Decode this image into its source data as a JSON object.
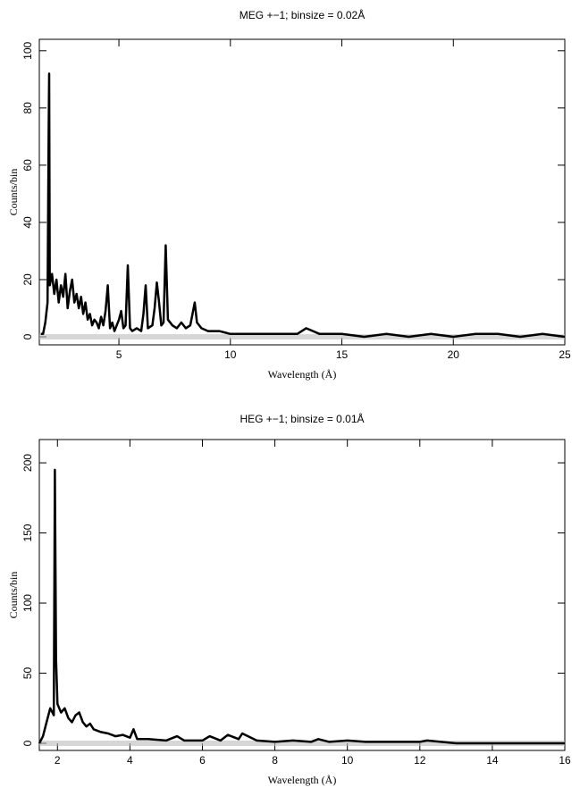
{
  "chart_data": [
    {
      "type": "line",
      "title": "MEG +−1; binsize = 0.02Å",
      "xlabel": "Wavelength (Å)",
      "ylabel": "Counts/bin",
      "color": "#000000",
      "x": [
        1.5,
        1.6,
        1.7,
        1.8,
        1.85,
        1.87,
        1.9,
        2.0,
        2.1,
        2.2,
        2.3,
        2.4,
        2.5,
        2.6,
        2.7,
        2.8,
        2.9,
        3.0,
        3.1,
        3.2,
        3.3,
        3.4,
        3.5,
        3.6,
        3.7,
        3.8,
        3.9,
        4.0,
        4.1,
        4.2,
        4.3,
        4.4,
        4.5,
        4.6,
        4.7,
        4.8,
        4.9,
        5.0,
        5.1,
        5.2,
        5.3,
        5.4,
        5.5,
        5.6,
        5.8,
        6.0,
        6.1,
        6.2,
        6.3,
        6.5,
        6.6,
        6.7,
        6.8,
        6.9,
        7.0,
        7.1,
        7.2,
        7.4,
        7.6,
        7.8,
        8.0,
        8.2,
        8.4,
        8.5,
        8.7,
        9.0,
        9.5,
        10.0,
        10.5,
        11.0,
        11.5,
        12.0,
        13.0,
        13.4,
        14,
        15,
        16,
        17,
        18,
        19,
        20,
        21,
        22,
        23,
        24,
        25
      ],
      "values": [
        1,
        1,
        5,
        12,
        74,
        92,
        18,
        22,
        15,
        20,
        12,
        18,
        14,
        22,
        10,
        16,
        20,
        12,
        15,
        10,
        14,
        8,
        12,
        6,
        8,
        4,
        6,
        5,
        3,
        7,
        4,
        9,
        18,
        3,
        5,
        2,
        4,
        6,
        9,
        3,
        4,
        25,
        3,
        2,
        3,
        2,
        8,
        18,
        3,
        4,
        10,
        19,
        12,
        4,
        5,
        32,
        6,
        4,
        3,
        5,
        3,
        4,
        12,
        5,
        3,
        2,
        2,
        1,
        1,
        1,
        1,
        1,
        1,
        3,
        1,
        1,
        0,
        1,
        0,
        1,
        0,
        1,
        1,
        0,
        1,
        0
      ],
      "xlim": [
        1.43,
        25
      ],
      "ylim": [
        -2.8,
        104
      ],
      "xticks": [
        5,
        10,
        15,
        20,
        25
      ],
      "yticks": [
        0,
        20,
        40,
        60,
        80,
        100
      ]
    },
    {
      "type": "line",
      "title": "HEG +−1; binsize = 0.01Å",
      "xlabel": "Wavelength (Å)",
      "ylabel": "Counts/bin",
      "color": "#000000",
      "x": [
        1.5,
        1.6,
        1.7,
        1.8,
        1.9,
        1.93,
        1.96,
        2.0,
        2.1,
        2.2,
        2.3,
        2.4,
        2.5,
        2.6,
        2.7,
        2.8,
        2.9,
        3.0,
        3.2,
        3.4,
        3.6,
        3.8,
        4.0,
        4.1,
        4.2,
        4.5,
        5.0,
        5.3,
        5.5,
        6.0,
        6.2,
        6.5,
        6.7,
        7.0,
        7.1,
        7.5,
        8.0,
        8.5,
        9.0,
        9.2,
        9.5,
        10,
        10.5,
        11,
        12,
        12.2,
        13,
        14,
        15,
        16
      ],
      "values": [
        0,
        5,
        15,
        25,
        20,
        195,
        60,
        28,
        22,
        25,
        18,
        15,
        20,
        22,
        15,
        12,
        14,
        10,
        8,
        7,
        5,
        6,
        4,
        10,
        3,
        3,
        2,
        5,
        2,
        2,
        5,
        2,
        6,
        3,
        7,
        2,
        1,
        2,
        1,
        3,
        1,
        2,
        1,
        1,
        1,
        2,
        0,
        0,
        0,
        0
      ],
      "xlim": [
        1.5,
        16
      ],
      "ylim": [
        -5.1,
        216.6
      ],
      "xticks": [
        2,
        4,
        6,
        8,
        10,
        12,
        14,
        16
      ],
      "yticks": [
        0,
        50,
        100,
        150,
        200
      ]
    }
  ]
}
